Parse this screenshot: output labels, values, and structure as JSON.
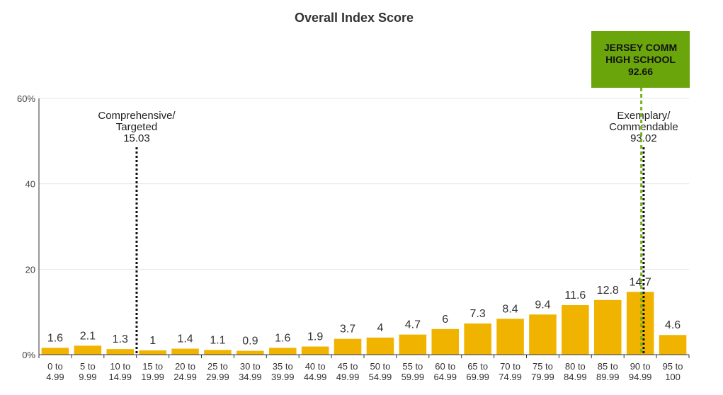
{
  "chart_data": {
    "type": "bar",
    "title": "Overall Index Score",
    "categories": [
      [
        "0 to",
        "4.99"
      ],
      [
        "5 to",
        "9.99"
      ],
      [
        "10 to",
        "14.99"
      ],
      [
        "15 to",
        "19.99"
      ],
      [
        "20 to",
        "24.99"
      ],
      [
        "25 to",
        "29.99"
      ],
      [
        "30 to",
        "34.99"
      ],
      [
        "35 to",
        "39.99"
      ],
      [
        "40 to",
        "44.99"
      ],
      [
        "45 to",
        "49.99"
      ],
      [
        "50 to",
        "54.99"
      ],
      [
        "55 to",
        "59.99"
      ],
      [
        "60 to",
        "64.99"
      ],
      [
        "65 to",
        "69.99"
      ],
      [
        "70 to",
        "74.99"
      ],
      [
        "75 to",
        "79.99"
      ],
      [
        "80 to",
        "84.99"
      ],
      [
        "85 to",
        "89.99"
      ],
      [
        "90 to",
        "94.99"
      ],
      [
        "95 to",
        "100"
      ]
    ],
    "values": [
      1.6,
      2.1,
      1.3,
      1,
      1.4,
      1.1,
      0.9,
      1.6,
      1.9,
      3.7,
      4,
      4.7,
      6,
      7.3,
      8.4,
      9.4,
      11.6,
      12.8,
      14.7,
      4.6
    ],
    "value_labels": [
      "1.6",
      "2.1",
      "1.3",
      "1",
      "1.4",
      "1.1",
      "0.9",
      "1.6",
      "1.9",
      "3.7",
      "4",
      "4.7",
      "6",
      "7.3",
      "8.4",
      "9.4",
      "11.6",
      "12.8",
      "14.7",
      "4.6"
    ],
    "x_range": [
      0,
      100
    ],
    "ylim": [
      0,
      60
    ],
    "yticks": [
      0,
      20,
      40,
      60
    ],
    "ytick_labels": [
      "0%",
      "20",
      "40",
      "60%"
    ],
    "grid": true,
    "bar_color": "#f0b400",
    "reference_lines": [
      {
        "lines": [
          "Comprehensive/",
          "Targeted",
          "15.03"
        ],
        "x": 15.03,
        "color": "#111111",
        "style": "dotted"
      },
      {
        "lines": [
          "Exemplary/",
          "Commendable",
          "93.02"
        ],
        "x": 93.02,
        "color": "#111111",
        "style": "dotted"
      }
    ],
    "highlight": {
      "lines": [
        "JERSEY COMM",
        "HIGH SCHOOL",
        "92.66"
      ],
      "x": 92.66,
      "box_color": "#6aa50c",
      "line_color": "#7ab317"
    }
  }
}
